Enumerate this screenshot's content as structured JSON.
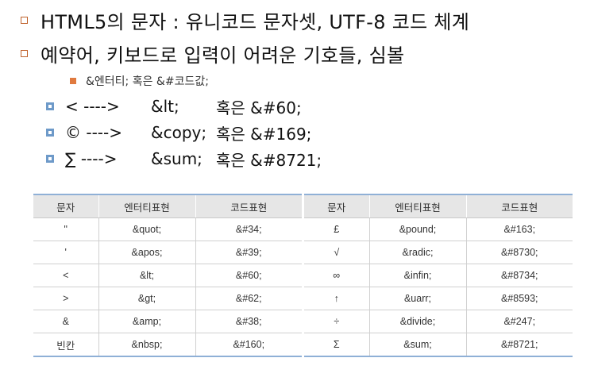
{
  "bullets": [
    {
      "text": "HTML5의 문자 : 유니코드 문자셋, UTF-8 코드 체계"
    },
    {
      "text": "예약어, 키보드로 입력이 어려운 기호들, 심볼"
    }
  ],
  "sub_bullet": {
    "text": "&엔터티; 혹은 &#코드값;"
  },
  "items": [
    {
      "symbol": "< ---->",
      "entity": "&lt;",
      "or_code": "혹은 &#60;"
    },
    {
      "symbol": "© ---->",
      "entity": "&copy;",
      "or_code": "혹은 &#169;"
    },
    {
      "symbol": "∑ ---->",
      "entity": "&sum;",
      "or_code": "혹은 &#8721;"
    }
  ],
  "table_headers": [
    "문자",
    "엔터티표현",
    "코드표현"
  ],
  "table_left": [
    [
      "\"",
      "&quot;",
      "&#34;"
    ],
    [
      "'",
      "&apos;",
      "&#39;"
    ],
    [
      "<",
      "&lt;",
      "&#60;"
    ],
    [
      ">",
      "&gt;",
      "&#62;"
    ],
    [
      "&",
      "&amp;",
      "&#38;"
    ],
    [
      "빈칸",
      "&nbsp;",
      "&#160;"
    ]
  ],
  "table_right": [
    [
      "£",
      "&pound;",
      "&#163;"
    ],
    [
      "√",
      "&radic;",
      "&#8730;"
    ],
    [
      "∞",
      "&infin;",
      "&#8734;"
    ],
    [
      "↑",
      "&uarr;",
      "&#8593;"
    ],
    [
      "÷",
      "&divide;",
      "&#247;"
    ],
    [
      "Σ",
      "&sum;",
      "&#8721;"
    ]
  ],
  "colors": {
    "bullet_outline": "#c0622c",
    "sub_bullet": "#e07a3f",
    "item_bullet": "#6e9ac9",
    "table_header_bg": "#e6e6e6",
    "table_rule": "#8fb0d6"
  }
}
